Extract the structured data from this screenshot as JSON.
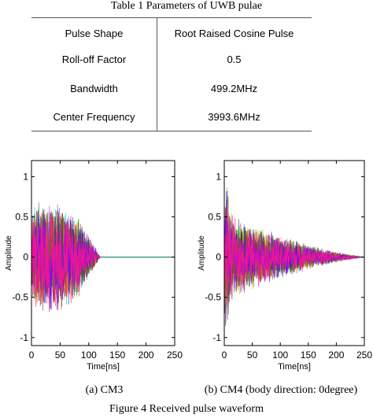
{
  "table": {
    "caption": "Table 1 Parameters of UWB pulae",
    "rows": [
      {
        "param": "Pulse Shape",
        "value": "Root Raised Cosine Pulse"
      },
      {
        "param": "Roll-off Factor",
        "value": "0.5"
      },
      {
        "param": "Bandwidth",
        "value": "499.2MHz"
      },
      {
        "param": "Center Frequency",
        "value": "3993.6MHz"
      }
    ]
  },
  "figure": {
    "caption": "Figure 4 Received pulse waveform",
    "panels": [
      {
        "caption": "(a) CM3"
      },
      {
        "caption": "(b) CM4 (body direction: 0degree)"
      }
    ]
  },
  "chart_data": [
    {
      "type": "line",
      "title": "",
      "xlabel": "Time[ns]",
      "ylabel": "Amplitude",
      "xlim": [
        0,
        250
      ],
      "ylim": [
        -1.1,
        1.2
      ],
      "xticks": [
        "0",
        "50",
        "100",
        "150",
        "200",
        "250"
      ],
      "yticks": [
        "1",
        "0.5",
        "0",
        "-0.5",
        "-1"
      ],
      "grid": false,
      "envelope": {
        "x": [
          0,
          5,
          20,
          40,
          60,
          80,
          100,
          112,
          120,
          250
        ],
        "amplitude": [
          0.5,
          0.7,
          0.72,
          0.72,
          0.68,
          0.55,
          0.28,
          0.12,
          0,
          0
        ]
      },
      "series_colors": [
        "#1f3fd8",
        "#2a9a2a",
        "#d62728",
        "#17becf",
        "#c02bc0",
        "#bcbd22",
        "#555555",
        "#ff7f0e",
        "#0a5c0a",
        "#8c564b",
        "#7f00ff",
        "#ff1493"
      ]
    },
    {
      "type": "line",
      "title": "",
      "xlabel": "Time[ns]",
      "ylabel": "Amplitude",
      "xlim": [
        0,
        250
      ],
      "ylim": [
        -1.1,
        1.2
      ],
      "xticks": [
        "0",
        "50",
        "100",
        "150",
        "200",
        "250"
      ],
      "yticks": [
        "1",
        "0.5",
        "0",
        "-0.5",
        "-1"
      ],
      "grid": false,
      "envelope": {
        "x": [
          0,
          2,
          6,
          10,
          20,
          40,
          60,
          80,
          100,
          125,
          150,
          175,
          200,
          225,
          240,
          250
        ],
        "amplitude": [
          0.6,
          1.05,
          0.95,
          0.6,
          0.5,
          0.44,
          0.38,
          0.33,
          0.28,
          0.22,
          0.16,
          0.11,
          0.07,
          0.03,
          0.01,
          0
        ]
      },
      "series_colors": [
        "#1f3fd8",
        "#2a9a2a",
        "#d62728",
        "#17becf",
        "#c02bc0",
        "#bcbd22",
        "#555555",
        "#ff7f0e",
        "#0a5c0a",
        "#8c564b",
        "#7f00ff",
        "#ff1493"
      ]
    }
  ]
}
